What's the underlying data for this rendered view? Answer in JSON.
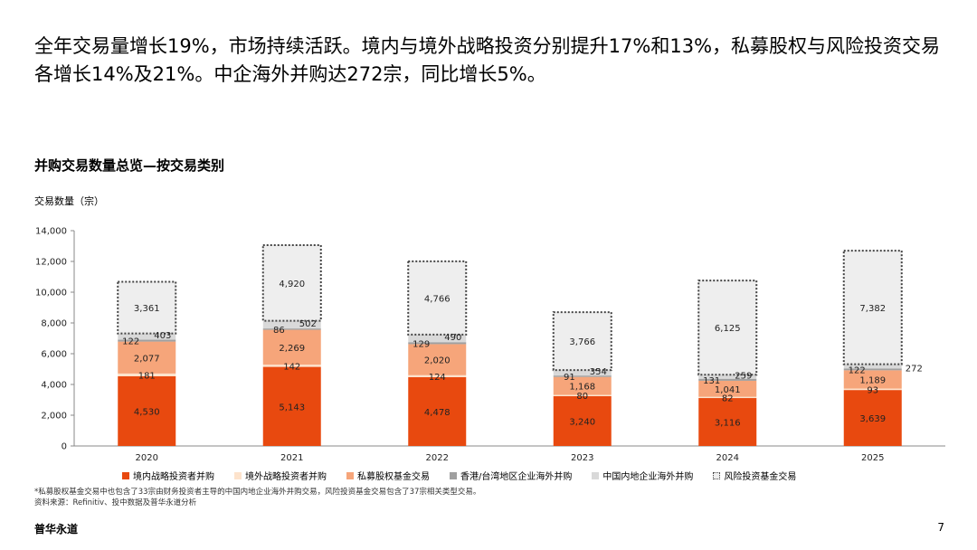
{
  "headline": "全年交易量增长19%，市场持续活跃。境内与境外战略投资分别提升17%和13%，私募股权与风险投资交易各增长14%及21%。中企海外并购达272宗，同比增长5%。",
  "footnote_lines": [
    "*私募股权基金交易中也包含了33宗由财务投资者主导的中国内地企业海外并购交易，风险投资基金交易包含了37宗相关类型交易。",
    "资料来源：Refinitiv、投中数据及普华永道分析"
  ],
  "brand": "普华永道",
  "page_number": "7",
  "chart_data": {
    "type": "bar",
    "stacked": true,
    "title": "并购交易数量总览—按交易类别",
    "ylabel": "交易数量（宗）",
    "xlabel": "",
    "ylim": [
      0,
      14000
    ],
    "yticks": [
      0,
      2000,
      4000,
      6000,
      8000,
      10000,
      12000,
      14000
    ],
    "ytick_labels": [
      "0",
      "2,000",
      "4,000",
      "6,000",
      "8,000",
      "10,000",
      "12,000",
      "14,000"
    ],
    "categories": [
      "2020",
      "2021",
      "2022",
      "2023",
      "2024",
      "2025"
    ],
    "series": [
      {
        "name": "境内战略投资者并购",
        "color": "#e8490f",
        "values": [
          4530,
          5143,
          4478,
          3240,
          3116,
          3639
        ],
        "labels": [
          "4,530",
          "5,143",
          "4,478",
          "3,240",
          "3,116",
          "3,639"
        ]
      },
      {
        "name": "境外战略投资者并购",
        "color": "#fde3cc",
        "values": [
          181,
          142,
          124,
          80,
          82,
          93
        ],
        "labels": [
          "181",
          "142",
          "124",
          "80",
          "82",
          "93"
        ]
      },
      {
        "name": "私募股权基金交易",
        "color": "#f6a57a",
        "values": [
          2077,
          2269,
          2020,
          1168,
          1041,
          1189
        ],
        "labels": [
          "2,077",
          "2,269",
          "2,020",
          "1,168",
          "1,041",
          "1,189"
        ]
      },
      {
        "name": "香港/台湾地区企业海外并购",
        "color": "#a0a0a0",
        "values": [
          122,
          86,
          129,
          91,
          131,
          122
        ],
        "labels": [
          "122",
          "86",
          "129",
          "91",
          "131",
          "122"
        ]
      },
      {
        "name": "中国内地企业海外并购",
        "color": "#d9d9d9",
        "values": [
          403,
          502,
          490,
          354,
          259,
          272
        ],
        "labels": [
          "403",
          "502",
          "490",
          "354",
          "259",
          "272"
        ]
      },
      {
        "name": "风险投资基金交易",
        "color": "#eeeeee",
        "dotted": true,
        "values": [
          3361,
          4920,
          4766,
          3766,
          6125,
          7382
        ],
        "labels": [
          "3,361",
          "4,920",
          "4,766",
          "3,766",
          "6,125",
          "7,382"
        ]
      }
    ]
  }
}
